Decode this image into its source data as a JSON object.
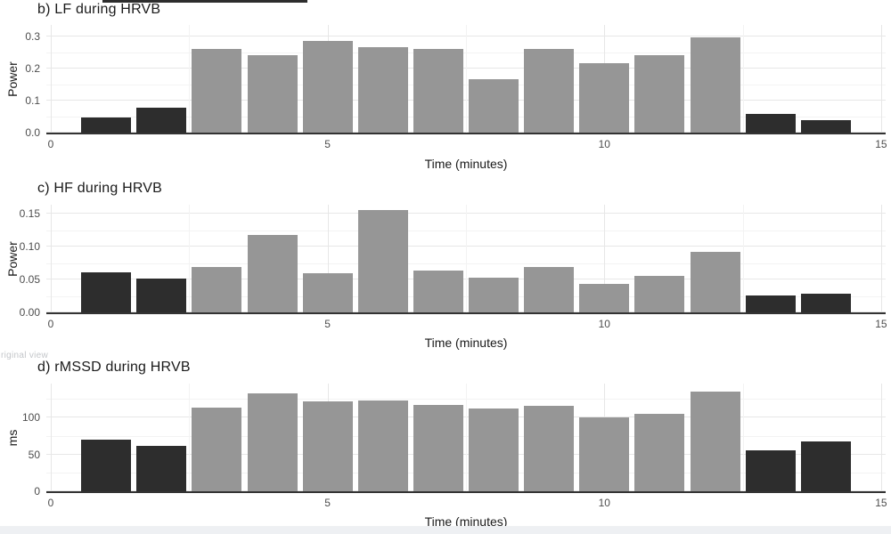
{
  "page": {
    "watermark_text": "riginal view"
  },
  "colors": {
    "dark_bar": "#2d2d2d",
    "gray_bar": "#969696",
    "axis_line": "#333333",
    "grid_major": "#e7e7e7",
    "grid_minor": "#f3f3f3",
    "tick_label": "#4d4d4d",
    "text": "#1a1a1a"
  },
  "chart_data": [
    {
      "type": "bar",
      "title": "b) LF during HRVB",
      "xlabel": "Time (minutes)",
      "ylabel": "Power",
      "categories": [
        1,
        2,
        3,
        4,
        5,
        6,
        7,
        8,
        9,
        10,
        11,
        12,
        13,
        14
      ],
      "values": [
        0.048,
        0.077,
        0.262,
        0.243,
        0.285,
        0.267,
        0.262,
        0.166,
        0.262,
        0.218,
        0.243,
        0.297,
        0.059,
        0.04
      ],
      "dark_categories": [
        1,
        2,
        13,
        14
      ],
      "xlim": [
        0,
        15
      ],
      "ylim": [
        0,
        0.335
      ],
      "x_ticks": [
        {
          "v": 0,
          "label": "0"
        },
        {
          "v": 5,
          "label": "5"
        },
        {
          "v": 10,
          "label": "10"
        },
        {
          "v": 15,
          "label": "15"
        }
      ],
      "y_ticks": [
        {
          "v": 0,
          "label": "0.0"
        },
        {
          "v": 0.1,
          "label": "0.1"
        },
        {
          "v": 0.2,
          "label": "0.2"
        },
        {
          "v": 0.3,
          "label": "0.3"
        }
      ],
      "x_minor": [
        2.5,
        7.5,
        12.5
      ],
      "y_minor": [
        0.05,
        0.15,
        0.25
      ],
      "grid": true,
      "legend": "none"
    },
    {
      "type": "bar",
      "title": "c) HF during HRVB",
      "xlabel": "Time (minutes)",
      "ylabel": "Power",
      "categories": [
        1,
        2,
        3,
        4,
        5,
        6,
        7,
        8,
        9,
        10,
        11,
        12,
        13,
        14
      ],
      "values": [
        0.061,
        0.051,
        0.069,
        0.118,
        0.06,
        0.155,
        0.064,
        0.053,
        0.069,
        0.043,
        0.056,
        0.092,
        0.026,
        0.029
      ],
      "dark_categories": [
        1,
        2,
        13,
        14
      ],
      "xlim": [
        0,
        15
      ],
      "ylim": [
        0,
        0.163
      ],
      "x_ticks": [
        {
          "v": 0,
          "label": "0"
        },
        {
          "v": 5,
          "label": "5"
        },
        {
          "v": 10,
          "label": "10"
        },
        {
          "v": 15,
          "label": "15"
        }
      ],
      "y_ticks": [
        {
          "v": 0,
          "label": "0.00"
        },
        {
          "v": 0.05,
          "label": "0.05"
        },
        {
          "v": 0.1,
          "label": "0.10"
        },
        {
          "v": 0.15,
          "label": "0.15"
        }
      ],
      "x_minor": [
        2.5,
        7.5,
        12.5
      ],
      "y_minor": [
        0.025,
        0.075,
        0.125
      ],
      "grid": true,
      "legend": "none"
    },
    {
      "type": "bar",
      "title": "d) rMSSD during HRVB",
      "xlabel": "Time (minutes)",
      "ylabel": "ms",
      "categories": [
        1,
        2,
        3,
        4,
        5,
        6,
        7,
        8,
        9,
        10,
        11,
        12,
        13,
        14
      ],
      "values": [
        70,
        62,
        113,
        133,
        122,
        123,
        117,
        112,
        116,
        100,
        105,
        135,
        56,
        68
      ],
      "dark_categories": [
        1,
        2,
        13,
        14
      ],
      "xlim": [
        0,
        15
      ],
      "ylim": [
        0,
        146
      ],
      "x_ticks": [
        {
          "v": 0,
          "label": "0"
        },
        {
          "v": 5,
          "label": "5"
        },
        {
          "v": 10,
          "label": "10"
        },
        {
          "v": 15,
          "label": "15"
        }
      ],
      "y_ticks": [
        {
          "v": 0,
          "label": "0"
        },
        {
          "v": 50,
          "label": "50"
        },
        {
          "v": 100,
          "label": "100"
        }
      ],
      "x_minor": [
        2.5,
        7.5,
        12.5
      ],
      "y_minor": [
        25,
        75,
        125
      ],
      "grid": true,
      "legend": "none"
    }
  ]
}
